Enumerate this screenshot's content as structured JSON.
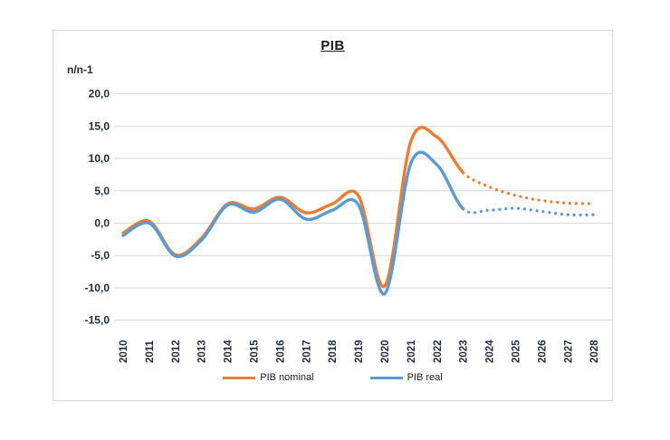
{
  "chart": {
    "title": "PIB",
    "y_unit_label": "n/n-1",
    "colors": {
      "nominal": "#ED7D31",
      "real": "#5B9BD5",
      "gridline": "#D9D9D9",
      "frame_border": "#D8D8D8",
      "axis_text": "#1F2B3E",
      "title_text": "#1A1A1A"
    },
    "legend": [
      {
        "label": "PIB nominal",
        "color": "#ED7D31"
      },
      {
        "label": "PIB real",
        "color": "#5B9BD5"
      }
    ]
  },
  "chart_data": {
    "type": "line",
    "title": "PIB",
    "ylabel": "n/n-1",
    "xlabel": "",
    "categories": [
      2010,
      2011,
      2012,
      2013,
      2014,
      2015,
      2016,
      2017,
      2018,
      2019,
      2020,
      2021,
      2022,
      2023,
      2024,
      2025,
      2026,
      2027,
      2028
    ],
    "series": [
      {
        "name": "PIB nominal",
        "color": "#ED7D31",
        "values": [
          -1.5,
          0.3,
          -4.9,
          -2.3,
          3.0,
          2.2,
          4.0,
          1.6,
          3.0,
          4.2,
          -9.7,
          12.7,
          13.3,
          7.8,
          5.6,
          4.3,
          3.5,
          3.1,
          3.0
        ]
      },
      {
        "name": "PIB real",
        "color": "#5B9BD5",
        "values": [
          -1.9,
          0.0,
          -5.1,
          -2.6,
          2.8,
          1.7,
          3.7,
          0.6,
          2.0,
          2.8,
          -10.9,
          9.3,
          9.0,
          2.2,
          2.0,
          2.3,
          1.8,
          1.3,
          1.3
        ]
      }
    ],
    "forecast_start_index": 13,
    "forecast_style": "dotted",
    "smoothed_lines": true,
    "ylim": [
      -15,
      20
    ],
    "ytick_step": 5,
    "decimal_comma": true,
    "grid": true,
    "legend_position": "bottom",
    "x_labels_rotated_90": true
  }
}
